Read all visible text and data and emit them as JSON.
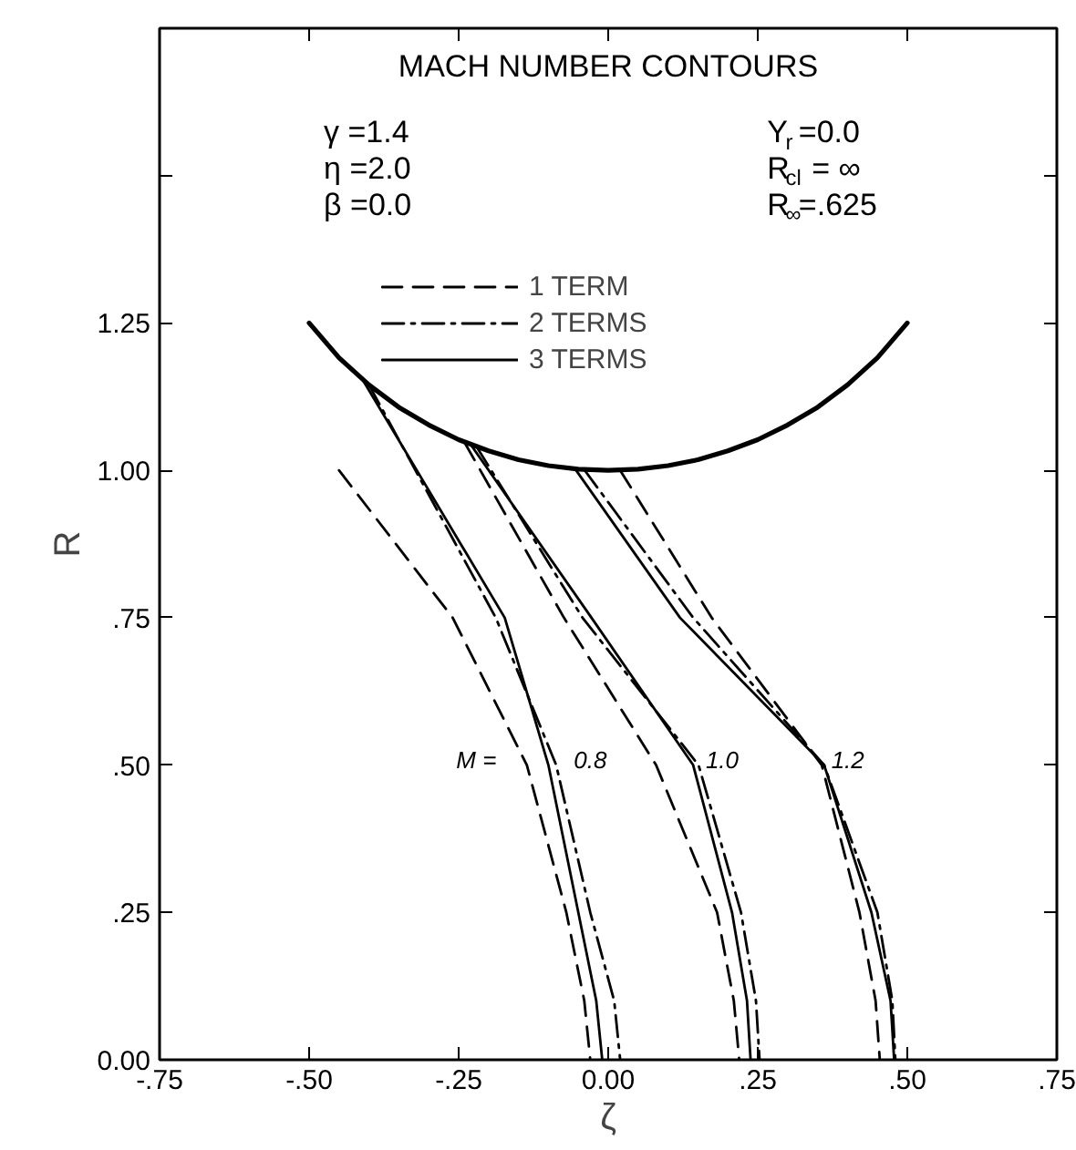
{
  "chart_data": {
    "type": "line",
    "title": "MACH NUMBER CONTOURS",
    "xlabel": "ζ",
    "ylabel": "R",
    "xlim": [
      -0.75,
      0.75
    ],
    "ylim": [
      0,
      1.75
    ],
    "xticks": [
      {
        "value": -0.75,
        "label": "-.75"
      },
      {
        "value": -0.5,
        "label": "-.50"
      },
      {
        "value": -0.25,
        "label": "-.25"
      },
      {
        "value": 0,
        "label": "0.00"
      },
      {
        "value": 0.25,
        "label": ".25"
      },
      {
        "value": 0.5,
        "label": ".50"
      },
      {
        "value": 0.75,
        "label": ".75"
      }
    ],
    "yticks": [
      {
        "value": 0,
        "label": "0.00"
      },
      {
        "value": 0.25,
        "label": ".25"
      },
      {
        "value": 0.5,
        "label": ".50"
      },
      {
        "value": 0.75,
        "label": ".75"
      },
      {
        "value": 1,
        "label": "1.00"
      },
      {
        "value": 1.25,
        "label": "1.25"
      },
      {
        "value": 1.5,
        "label": null
      }
    ],
    "grid": false,
    "legend": "top",
    "annotations": [
      "γ =1.4",
      "η =2.0",
      "β =0.0",
      "Y$_{r}$=0.0",
      "R$_{cl}$= ∞",
      "R$_{∞}$=.625",
      "M =",
      "0.8",
      "1.0",
      "1.2"
    ],
    "series": [
      {
        "color": "#000000",
        "line_style": "solid",
        "x": [
          -0.5,
          -0.45,
          -0.4,
          -0.35,
          -0.3,
          -0.25,
          -0.2,
          -0.15,
          -0.1,
          -0.05,
          0,
          0.05,
          0.1,
          0.15,
          0.2,
          0.25,
          0.3,
          0.35,
          0.4,
          0.45,
          0.5
        ],
        "values": [
          1.25,
          1.191,
          1.145,
          1.107,
          1.077,
          1.052,
          1.033,
          1.018,
          1.008,
          1.002,
          1.0,
          1.002,
          1.008,
          1.018,
          1.033,
          1.052,
          1.077,
          1.107,
          1.145,
          1.191,
          1.25
        ]
      },
      {
        "name": "1 TERM",
        "color": "#000000",
        "line_style": "dashed",
        "x": [
          -0.45,
          -0.26,
          -0.136,
          -0.07,
          -0.04,
          -0.03
        ],
        "values": [
          1.0,
          0.75,
          0.5,
          0.25,
          0.1,
          0
        ]
      },
      {
        "color": "#000000",
        "line_style": "dashed",
        "x": [
          -0.24,
          -0.074,
          0.08,
          0.182,
          0.21,
          0.219
        ],
        "values": [
          1.047,
          0.75,
          0.5,
          0.25,
          0.1,
          0
        ]
      },
      {
        "color": "#000000",
        "line_style": "dashed",
        "x": [
          0.02,
          0.173,
          0.357,
          0.42,
          0.447,
          0.454
        ],
        "values": [
          1.0,
          0.75,
          0.5,
          0.25,
          0.1,
          0
        ]
      },
      {
        "name": "2 TERMS",
        "color": "#000000",
        "line_style": "dashdot",
        "x": [
          -0.4,
          -0.188,
          -0.087,
          -0.03,
          0.01,
          0.02
        ],
        "values": [
          1.145,
          0.75,
          0.5,
          0.25,
          0.1,
          0
        ]
      },
      {
        "color": "#000000",
        "line_style": "dashdot",
        "x": [
          -0.22,
          -0.043,
          0.151,
          0.222,
          0.247,
          0.253
        ],
        "values": [
          1.04,
          0.75,
          0.5,
          0.25,
          0.1,
          0
        ]
      },
      {
        "color": "#000000",
        "line_style": "dashdot",
        "x": [
          -0.04,
          0.142,
          0.361,
          0.45,
          0.475,
          0.48
        ],
        "values": [
          1.001,
          0.75,
          0.5,
          0.25,
          0.1,
          0
        ]
      },
      {
        "name": "3 TERMS",
        "color": "#000000",
        "line_style": "solid",
        "x": [
          -0.41,
          -0.173,
          -0.1,
          -0.05,
          -0.02,
          -0.01
        ],
        "values": [
          1.153,
          0.75,
          0.5,
          0.25,
          0.1,
          0
        ]
      },
      {
        "color": "#000000",
        "line_style": "solid",
        "x": [
          -0.23,
          -0.028,
          0.142,
          0.207,
          0.232,
          0.238
        ],
        "values": [
          1.044,
          0.75,
          0.5,
          0.25,
          0.1,
          0
        ]
      },
      {
        "color": "#000000",
        "line_style": "solid",
        "x": [
          -0.055,
          0.12,
          0.361,
          0.44,
          0.472,
          0.478
        ],
        "values": [
          1.002,
          0.75,
          0.5,
          0.25,
          0.1,
          0
        ]
      }
    ]
  }
}
